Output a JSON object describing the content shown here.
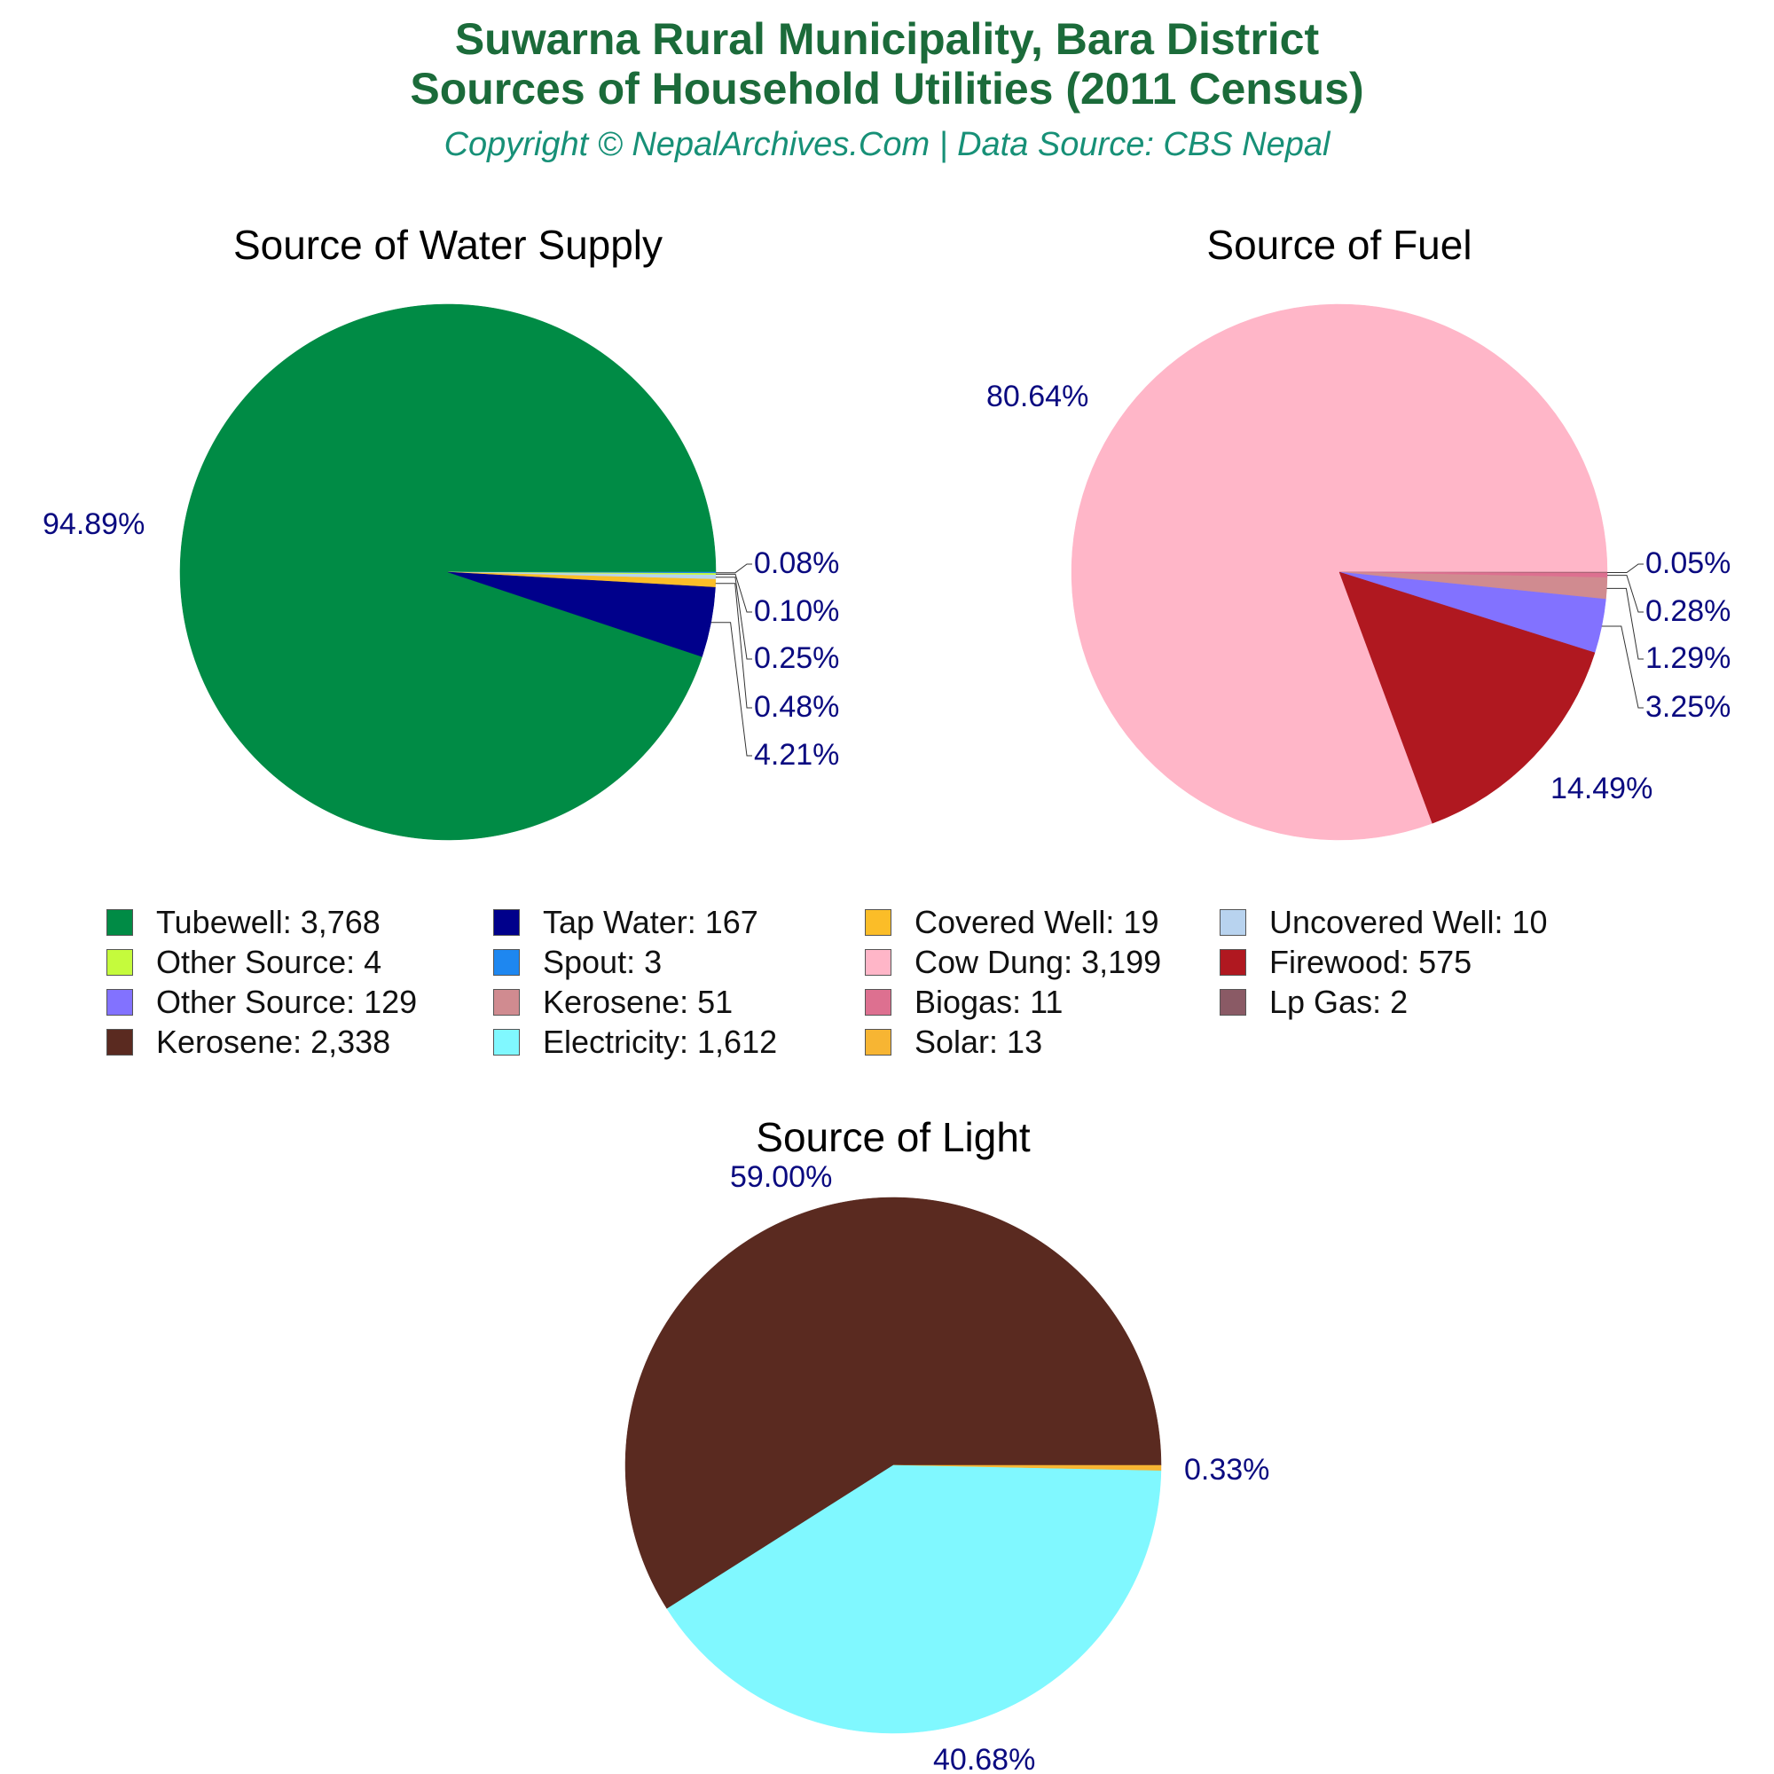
{
  "header": {
    "title_line1": "Suwarna Rural Municipality, Bara District",
    "title_line2": "Sources of Household Utilities (2011 Census)",
    "subtitle": "Copyright © NepalArchives.Com | Data Source: CBS Nepal"
  },
  "chart_data": [
    {
      "type": "pie",
      "title": "Source of Water Supply",
      "slices": [
        {
          "name": "Tubewell",
          "value": 3768,
          "pct_label": "94.89%",
          "color": "#008b45"
        },
        {
          "name": "Tap Water",
          "value": 167,
          "pct_label": "4.21%",
          "color": "#00008b"
        },
        {
          "name": "Covered Well",
          "value": 19,
          "pct_label": "0.48%",
          "color": "#fbbd28"
        },
        {
          "name": "Uncovered Well",
          "value": 10,
          "pct_label": "0.25%",
          "color": "#b8d3ef"
        },
        {
          "name": "Other Source",
          "value": 4,
          "pct_label": "0.10%",
          "color": "#c5fb3c"
        },
        {
          "name": "Spout",
          "value": 3,
          "pct_label": "0.08%",
          "color": "#1e87f0"
        }
      ]
    },
    {
      "type": "pie",
      "title": "Source of Fuel",
      "slices": [
        {
          "name": "Cow Dung",
          "value": 3199,
          "pct_label": "80.64%",
          "color": "#ffb6c8"
        },
        {
          "name": "Firewood",
          "value": 575,
          "pct_label": "14.49%",
          "color": "#b01820"
        },
        {
          "name": "Other Source",
          "value": 129,
          "pct_label": "3.25%",
          "color": "#8272ff"
        },
        {
          "name": "Kerosene",
          "value": 51,
          "pct_label": "1.29%",
          "color": "#d08b90"
        },
        {
          "name": "Biogas",
          "value": 11,
          "pct_label": "0.28%",
          "color": "#dd7090"
        },
        {
          "name": "Lp Gas",
          "value": 2,
          "pct_label": "0.05%",
          "color": "#8a5a65"
        }
      ]
    },
    {
      "type": "pie",
      "title": "Source of Light",
      "slices": [
        {
          "name": "Kerosene",
          "value": 2338,
          "pct_label": "59.00%",
          "color": "#5a2a20"
        },
        {
          "name": "Electricity",
          "value": 1612,
          "pct_label": "40.68%",
          "color": "#80f8ff"
        },
        {
          "name": "Solar",
          "value": 13,
          "pct_label": "0.33%",
          "color": "#f7b533"
        }
      ]
    }
  ],
  "legend": [
    {
      "label": "Tubewell: 3,768",
      "color": "#008b45"
    },
    {
      "label": "Tap Water: 167",
      "color": "#00008b"
    },
    {
      "label": "Covered Well: 19",
      "color": "#fbbd28"
    },
    {
      "label": "Uncovered Well: 10",
      "color": "#b8d3ef"
    },
    {
      "label": "Other Source: 4",
      "color": "#c5fb3c"
    },
    {
      "label": "Spout: 3",
      "color": "#1e87f0"
    },
    {
      "label": "Cow Dung: 3,199",
      "color": "#ffb6c8"
    },
    {
      "label": "Firewood: 575",
      "color": "#b01820"
    },
    {
      "label": "Other Source: 129",
      "color": "#8272ff"
    },
    {
      "label": "Kerosene: 51",
      "color": "#d08b90"
    },
    {
      "label": "Biogas: 11",
      "color": "#dd7090"
    },
    {
      "label": "Lp Gas: 2",
      "color": "#8a5a65"
    },
    {
      "label": "Kerosene: 2,338",
      "color": "#5a2a20"
    },
    {
      "label": "Electricity: 1,612",
      "color": "#80f8ff"
    },
    {
      "label": "Solar: 13",
      "color": "#f7b533"
    }
  ]
}
